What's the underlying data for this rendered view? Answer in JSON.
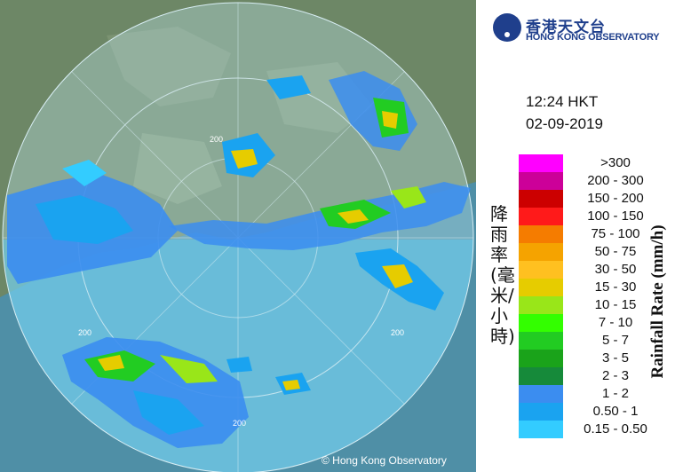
{
  "map": {
    "copyright": "© Hong Kong Observatory",
    "ring_labels": [
      "200",
      "200",
      "200",
      "200"
    ]
  },
  "header": {
    "logo_chinese": "香港天文台",
    "logo_english": "HONG KONG OBSERVATORY",
    "time": "12:24 HKT",
    "date": "02-09-2019"
  },
  "legend": {
    "title_chinese": "降雨率(毫米/小時)",
    "title_english": "Rainfall Rate (mm/h)",
    "items": [
      {
        "label": ">300",
        "color": "#ff00ff"
      },
      {
        "label": "200 - 300",
        "color": "#cc0099"
      },
      {
        "label": "150 - 200",
        "color": "#cc0000"
      },
      {
        "label": "100 - 150",
        "color": "#ff1a1a"
      },
      {
        "label": "75 - 100",
        "color": "#f57c00"
      },
      {
        "label": "50 - 75",
        "color": "#f5a300"
      },
      {
        "label": "30 - 50",
        "color": "#ffc020"
      },
      {
        "label": "15 - 30",
        "color": "#e6cc00"
      },
      {
        "label": "10 - 15",
        "color": "#99e619"
      },
      {
        "label": "7 - 10",
        "color": "#33ff00"
      },
      {
        "label": "5 - 7",
        "color": "#22cc22"
      },
      {
        "label": "3 - 5",
        "color": "#1aa31a"
      },
      {
        "label": "2 - 3",
        "color": "#168a3a"
      },
      {
        "label": "1 - 2",
        "color": "#3b8df0"
      },
      {
        "label": "0.50 - 1",
        "color": "#1aa3f0"
      },
      {
        "label": "0.15 - 0.50",
        "color": "#33ccff"
      }
    ]
  }
}
